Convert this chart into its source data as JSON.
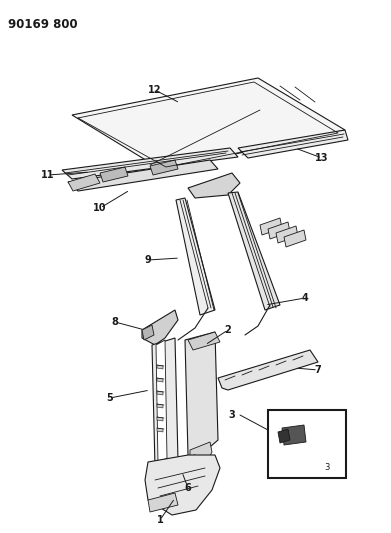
{
  "title": "90169 800",
  "bg_color": "#ffffff",
  "line_color": "#1a1a1a",
  "fig_width": 3.91,
  "fig_height": 5.33,
  "dpi": 100
}
